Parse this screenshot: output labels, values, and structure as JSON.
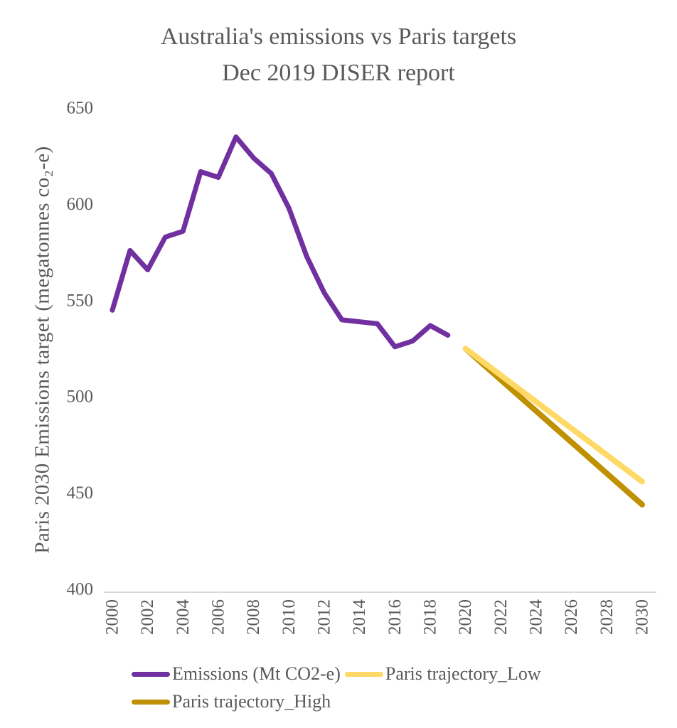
{
  "chart": {
    "title_line1": "Australia's emissions vs Paris targets",
    "title_line2": "Dec 2019 DISER report"
  },
  "chart_data": {
    "type": "line",
    "title": "Australia's emissions vs Paris targets Dec 2019 DISER report",
    "xlabel": "",
    "ylabel": "Paris 2030 Emissions target (megatonnes co₂-e)",
    "xlim": [
      2000,
      2030
    ],
    "ylim": [
      400,
      650
    ],
    "yticks": [
      650,
      600,
      550,
      500,
      450,
      400
    ],
    "xticks": [
      2000,
      2002,
      2004,
      2006,
      2008,
      2010,
      2012,
      2014,
      2016,
      2018,
      2020,
      2022,
      2024,
      2026,
      2028,
      2030
    ],
    "grid": false,
    "legend_position": "bottom",
    "draw_order": [
      0,
      2,
      1
    ],
    "colors": {
      "axis_line": "#D9D9D9",
      "text": "#595959"
    },
    "series": [
      {
        "id": "emissions",
        "name": "Emissions (Mt CO2-e)",
        "color": "#7030A0",
        "width": 7,
        "x": [
          2000,
          2001,
          2002,
          2003,
          2004,
          2005,
          2006,
          2007,
          2008,
          2009,
          2010,
          2011,
          2012,
          2013,
          2014,
          2015,
          2016,
          2017,
          2018,
          2019
        ],
        "values": [
          545,
          576,
          566,
          583,
          586,
          617,
          614,
          635,
          624,
          616,
          598,
          573,
          554,
          540,
          539,
          538,
          526,
          529,
          537,
          532
        ]
      },
      {
        "id": "paris-low",
        "name": "Paris trajectory_Low",
        "color": "#FFD966",
        "width": 8,
        "x": [
          2020,
          2030
        ],
        "values": [
          525,
          456
        ]
      },
      {
        "id": "paris-high",
        "name": "Paris trajectory_High",
        "color": "#BF9000",
        "width": 8,
        "x": [
          2020,
          2030
        ],
        "values": [
          525,
          444
        ]
      }
    ]
  }
}
